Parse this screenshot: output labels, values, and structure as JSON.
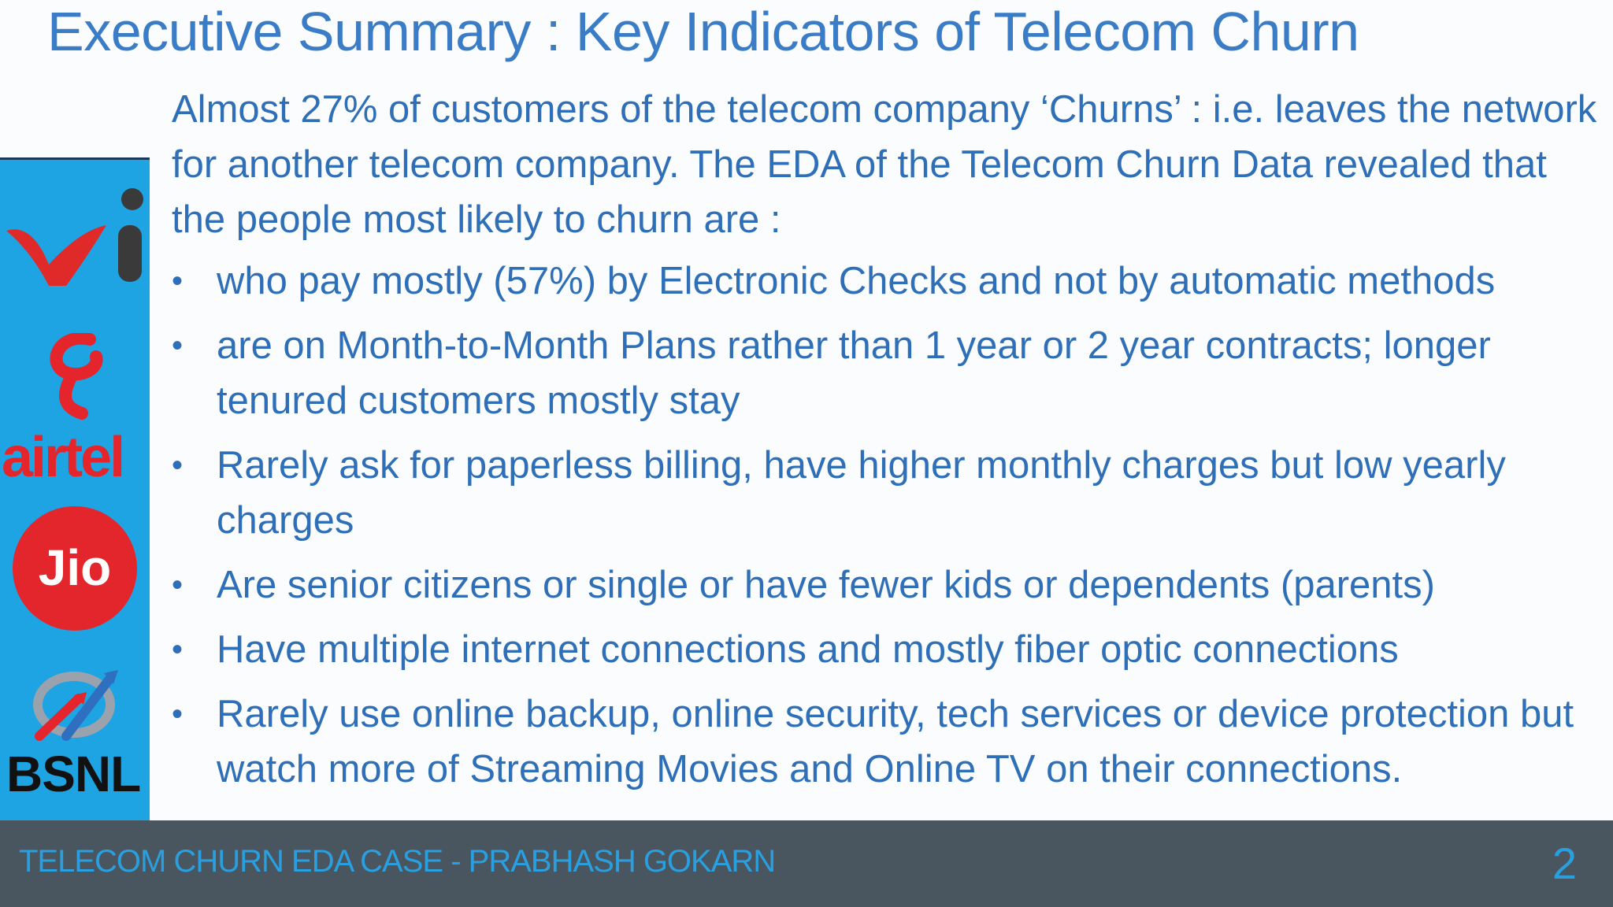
{
  "slide": {
    "title": "Executive Summary : Key Indicators of Telecom Churn",
    "intro": "Almost 27% of customers of the telecom company ‘Churns’ : i.e. leaves the network for another telecom company.  The EDA of the Telecom Churn Data revealed that the people most likely to churn are :",
    "bullet_glyph": "•",
    "bullets": [
      "who pay mostly (57%) by Electronic Checks and not by automatic methods",
      "are on Month-to-Month Plans rather than 1 year or 2 year contracts; longer tenured customers mostly stay",
      "Rarely ask for paperless billing, have higher monthly charges but low yearly charges",
      "Are senior citizens or single or have fewer kids or dependents (parents)",
      "Have multiple internet connections and mostly fiber optic connections",
      "Rarely use online backup, online security, tech services or device protection but watch more of Streaming Movies and Online TV on their connections."
    ]
  },
  "logos": {
    "vi": "vi",
    "airtel": "airtel",
    "jio": "Jio",
    "bsnl": "BSNL",
    "colors": {
      "strip_background": "#1ea3e3",
      "vi_red": "#e02a2a",
      "airtel_red": "#e4252c",
      "jio_red": "#e3262b",
      "bsnl_blue": "#2f6fc0"
    }
  },
  "footer": {
    "text": "TELECOM CHURN EDA CASE - PRABHASH GOKARN",
    "page_number": "2"
  },
  "colors": {
    "title": "#3a7dc6",
    "body_text": "#2e6fb7",
    "footer_background": "#4a565f",
    "footer_text": "#2a9fe0"
  }
}
